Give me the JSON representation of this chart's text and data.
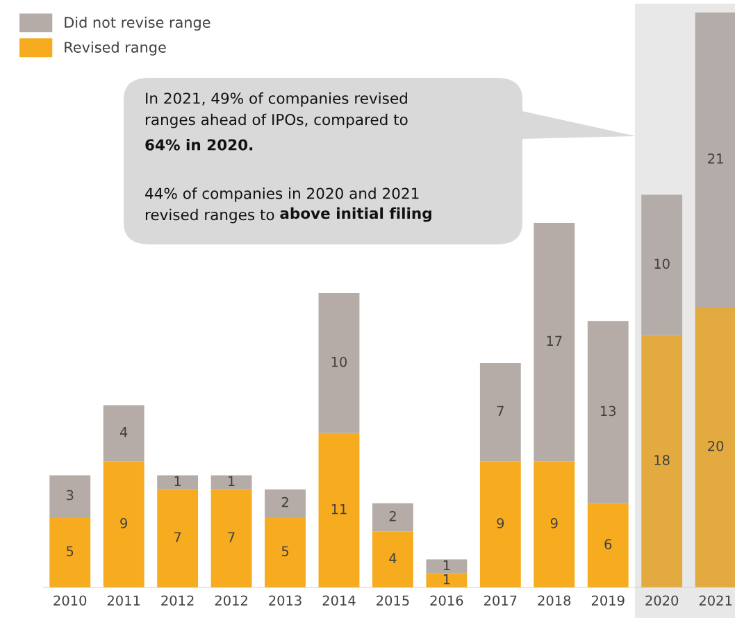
{
  "chart_data": {
    "type": "bar",
    "stacked": true,
    "data_labels": true,
    "legend": "top left",
    "grid": false,
    "categories": [
      "2010",
      "2011",
      "2012",
      "2012",
      "2013",
      "2014",
      "2015",
      "2016",
      "2017",
      "2018",
      "2019",
      "2020",
      "2021"
    ],
    "series": [
      {
        "name": "Revised range",
        "color": "#f7ab1f",
        "colors": [
          "#f7ab1f",
          "#f7ab1f",
          "#f7ab1f",
          "#f7ab1f",
          "#f7ab1f",
          "#f7ab1f",
          "#f7ab1f",
          "#f7ab1f",
          "#f7ab1f",
          "#f7ab1f",
          "#f7ab1f",
          "#e2aa3f",
          "#e2aa3f"
        ],
        "values": [
          5,
          9,
          7,
          7,
          5,
          11,
          4,
          1,
          9,
          9,
          6,
          18,
          20
        ]
      },
      {
        "name": "Did not revise range",
        "color": "#b6aca7",
        "colors": [
          "#b6aca7",
          "#b6aca7",
          "#b6aca7",
          "#b6aca7",
          "#b6aca7",
          "#b6aca7",
          "#b6aca7",
          "#b6aca7",
          "#b6aca7",
          "#b6aca7",
          "#b6aca7",
          "#b4aca8",
          "#b4aca8"
        ],
        "values": [
          3,
          4,
          1,
          1,
          2,
          10,
          2,
          1,
          7,
          17,
          13,
          10,
          21
        ]
      }
    ],
    "bands": [
      {
        "axis": "x",
        "from": "2020",
        "to": "2021",
        "color": "#e8e8e8"
      }
    ],
    "annotations": [
      "In 2021, 49% of companies revised\nranges ahead of IPOs, compared to",
      "64% in 2020.",
      "44% of companies in 2020 and 2021\nrevised ranges to",
      "above initial filing"
    ]
  }
}
